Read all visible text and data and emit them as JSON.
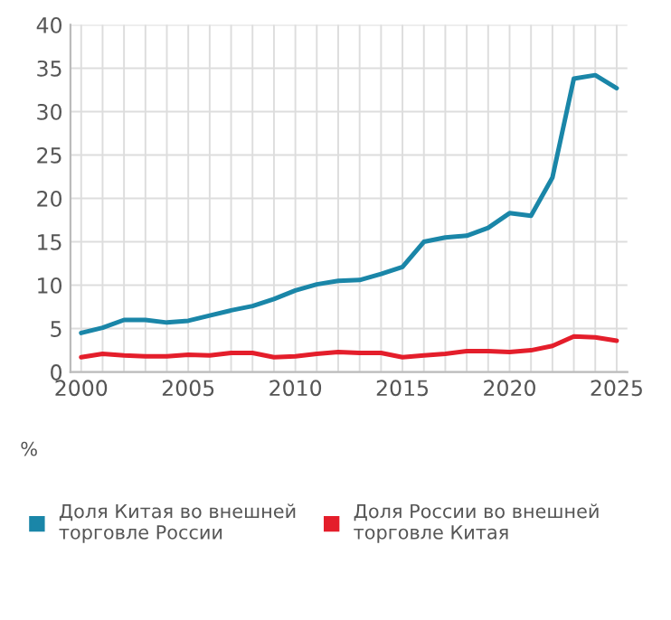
{
  "chart_data": {
    "type": "line",
    "x": [
      2000,
      2001,
      2002,
      2003,
      2004,
      2005,
      2006,
      2007,
      2008,
      2009,
      2010,
      2011,
      2012,
      2013,
      2014,
      2015,
      2016,
      2017,
      2018,
      2019,
      2020,
      2021,
      2022,
      2023,
      2024,
      2025
    ],
    "series": [
      {
        "name": "Доля Китая во внешней торговле России",
        "color": "#1a86a8",
        "values": [
          4.5,
          5.1,
          6.0,
          6.0,
          5.7,
          5.9,
          6.5,
          7.1,
          7.6,
          8.4,
          9.4,
          10.1,
          10.5,
          10.6,
          11.3,
          12.1,
          15.0,
          15.5,
          15.7,
          16.6,
          18.3,
          18.0,
          22.4,
          33.8,
          34.2,
          32.7
        ]
      },
      {
        "name": "Доля России во внешней торговле Китая",
        "color": "#e41e2b",
        "values": [
          1.7,
          2.1,
          1.9,
          1.8,
          1.8,
          2.0,
          1.9,
          2.2,
          2.2,
          1.7,
          1.8,
          2.1,
          2.3,
          2.2,
          2.2,
          1.7,
          1.9,
          2.1,
          2.4,
          2.4,
          2.3,
          2.5,
          3.0,
          4.1,
          4.0,
          3.6
        ]
      }
    ],
    "xlim": [
      1999.5,
      2025.5
    ],
    "xticks": [
      2000,
      {
        "value": 2001,
        "label": null
      },
      {
        "value": 2002,
        "label": null
      },
      {
        "value": 2003,
        "label": null
      },
      {
        "value": 2004,
        "label": null
      },
      2005,
      {
        "value": 2006,
        "label": null
      },
      {
        "value": 2007,
        "label": null
      },
      {
        "value": 2008,
        "label": null
      },
      {
        "value": 2009,
        "label": null
      },
      2010,
      {
        "value": 2011,
        "label": null
      },
      {
        "value": 2012,
        "label": null
      },
      {
        "value": 2013,
        "label": null
      },
      {
        "value": 2014,
        "label": null
      },
      2015,
      {
        "value": 2016,
        "label": null
      },
      {
        "value": 2017,
        "label": null
      },
      {
        "value": 2018,
        "label": null
      },
      {
        "value": 2019,
        "label": null
      },
      2020,
      {
        "value": 2021,
        "label": null
      },
      {
        "value": 2022,
        "label": null
      },
      {
        "value": 2023,
        "label": null
      },
      {
        "value": 2024,
        "label": null
      },
      2025
    ],
    "ylim": [
      0,
      40
    ],
    "yticks": [
      0,
      5,
      10,
      15,
      20,
      25,
      30,
      35,
      40
    ],
    "annotations": [
      "%"
    ],
    "grid": true,
    "legend": "bottom",
    "marker": "none",
    "line_style": "solid"
  }
}
